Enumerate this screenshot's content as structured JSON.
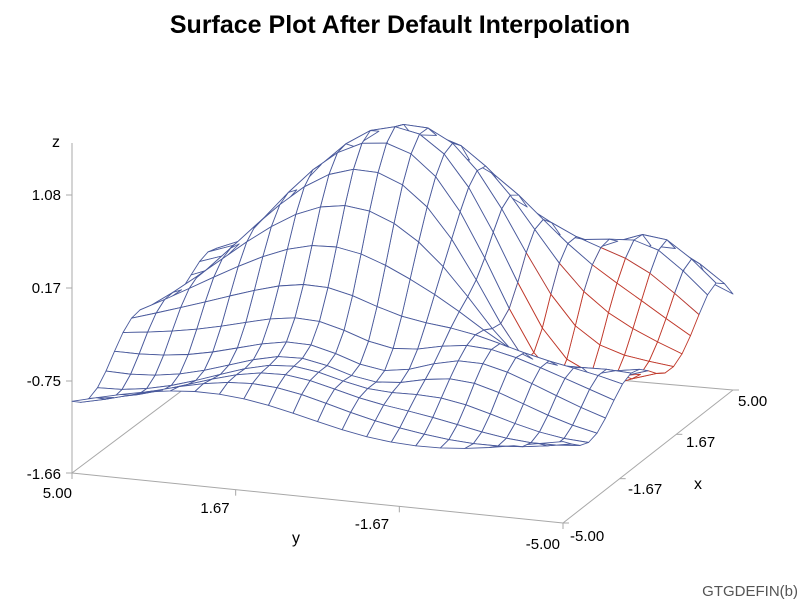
{
  "chart_data": {
    "type": "surface",
    "title": "Surface Plot After Default Interpolation",
    "xlabel": "x",
    "ylabel": "y",
    "zlabel": "z",
    "x_ticks": [
      "-5.00",
      "-1.67",
      "1.67",
      "5.00"
    ],
    "y_ticks": [
      "5.00",
      "1.67",
      "-1.67",
      "-5.00"
    ],
    "z_ticks": [
      "-1.66",
      "-0.75",
      "0.17",
      "1.08"
    ],
    "xlim": [
      -5,
      5
    ],
    "ylim": [
      -5,
      5
    ],
    "zlim": [
      -1.66,
      1.6
    ],
    "grid_size": 21,
    "mesh_color": "#4a5a9c",
    "below_surface_color": "#c0392b",
    "footnote": "GTGDEFIN(b)"
  }
}
